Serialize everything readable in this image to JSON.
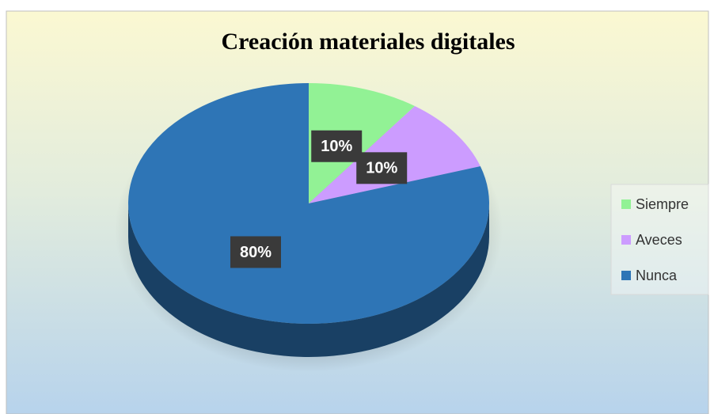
{
  "chart_data": {
    "type": "pie",
    "title": "Creación materiales digitales",
    "categories": [
      "Siempre",
      "Aveces",
      "Nunca"
    ],
    "values": [
      10,
      10,
      80
    ],
    "value_labels": [
      "10%",
      "10%",
      "80%"
    ],
    "colors": [
      "#92f295",
      "#cc9cff",
      "#2e75b6"
    ],
    "legend": "right"
  }
}
